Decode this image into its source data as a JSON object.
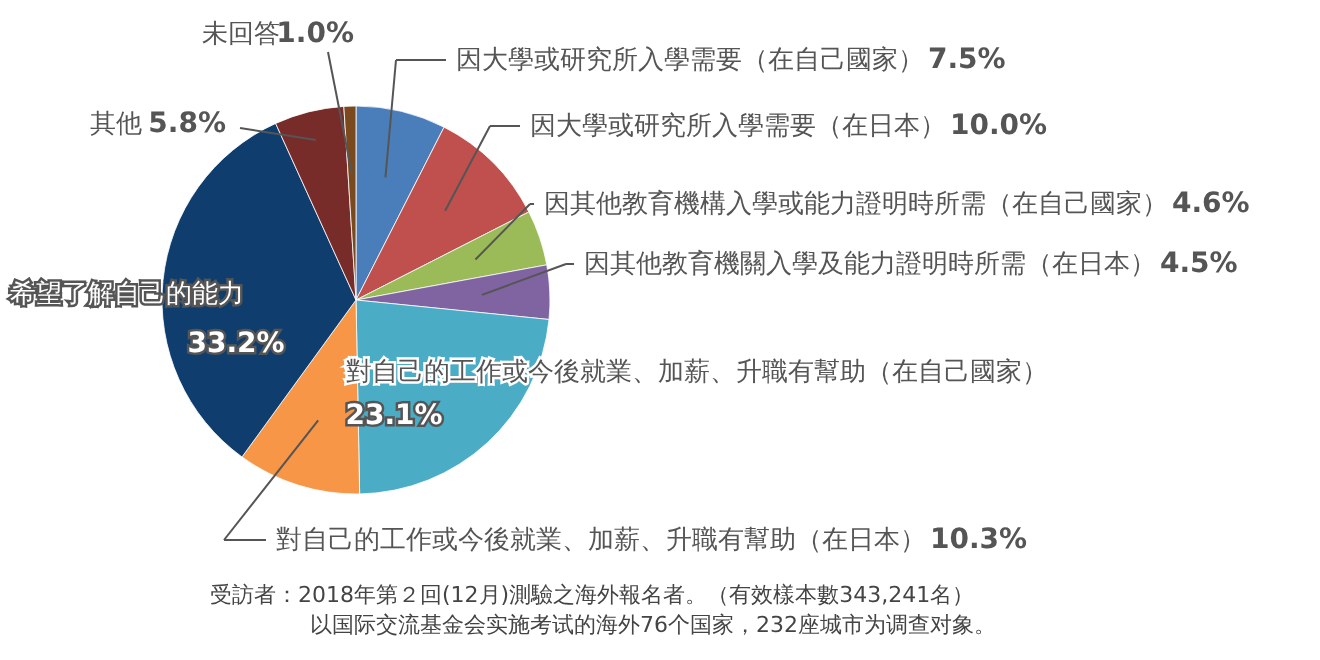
{
  "chart_data": {
    "type": "pie",
    "categories": [
      "因大學或研究所入學需要（在自己國家）",
      "因大學或研究所入學需要（在日本）",
      "因其他教育機構入學或能力證明時所需（在自己國家）",
      "因其他教育機關入學及能力證明時所需（在日本）",
      "對自己的工作或今後就業、加薪、升職有幫助（在自己國家）",
      "對自己的工作或今後就業、加薪、升職有幫助（在日本）",
      "希望了解自己的能力",
      "其他",
      "未回答"
    ],
    "values": [
      7.5,
      10.0,
      4.6,
      4.5,
      23.1,
      10.3,
      33.2,
      5.8,
      1.0
    ],
    "value_labels": [
      "7.5%",
      "10.0%",
      "4.6%",
      "4.5%",
      "23.1%",
      "10.3%",
      "33.2%",
      "5.8%",
      "1.0%"
    ],
    "colors": [
      "#4a7ebb",
      "#c0504d",
      "#9bbb59",
      "#8064a2",
      "#4bacc6",
      "#f79646",
      "#0f3e6e",
      "#772c2a",
      "#7a4a1e"
    ],
    "annotations": [
      "受訪者：2018年第２回(12月)測驗之海外報名者。（有效樣本數343,241名）",
      "以国际交流基金会实施考试的海外76个国家，232座城市为调查对象。"
    ]
  }
}
